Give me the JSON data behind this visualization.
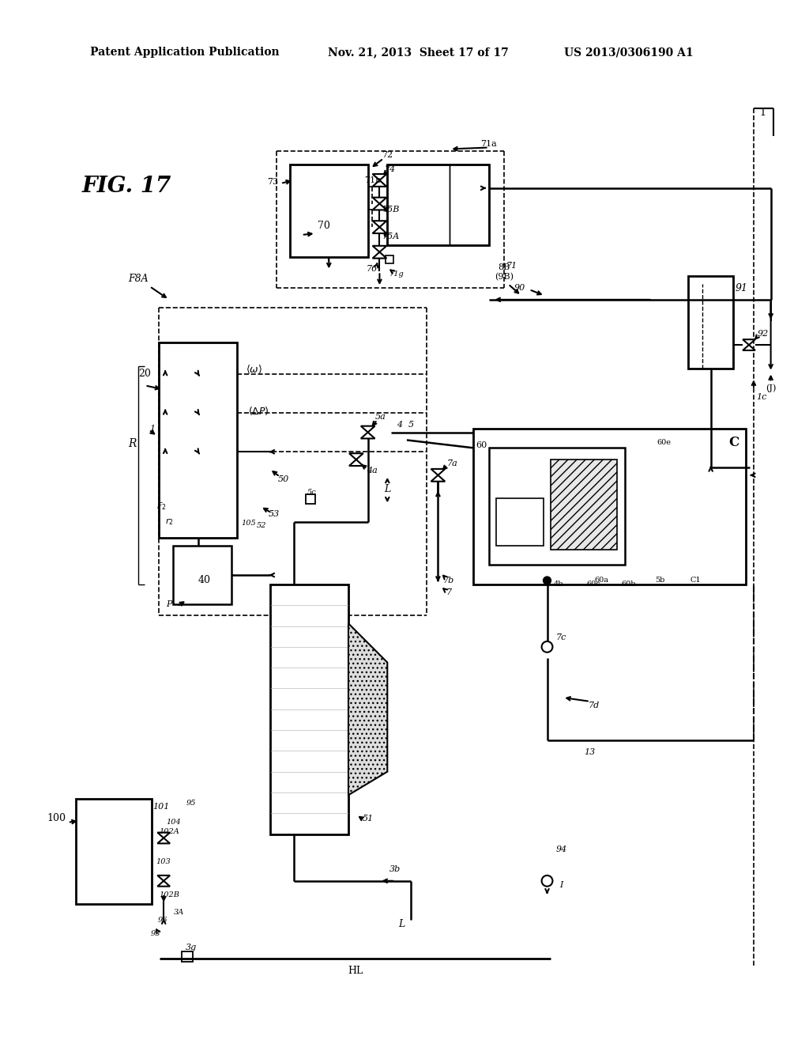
{
  "title_header_left": "Patent Application Publication",
  "title_header_mid": "Nov. 21, 2013  Sheet 17 of 17",
  "title_header_right": "US 2013/0306190 A1",
  "background": "#ffffff",
  "line_color": "#000000"
}
